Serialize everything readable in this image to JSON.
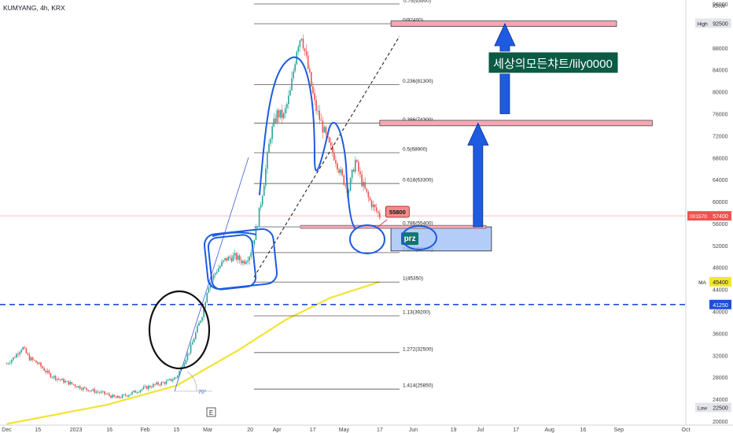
{
  "symbol_label": "KUMYANG, 4h, KRX",
  "currency": "KRW",
  "watermark": "세상의모든챠트/lily0000",
  "event_marker": "E",
  "angle_label": "70°",
  "chart_data": {
    "type": "candlestick",
    "y_axis": {
      "min": 20000,
      "max": 96000,
      "ticks": [
        96000,
        92500,
        88000,
        84000,
        80000,
        76000,
        72000,
        68000,
        64000,
        60000,
        56000,
        52000,
        48000,
        44000,
        40000,
        36000,
        32000,
        28000,
        24000,
        22500,
        20000
      ],
      "tick_labels": [
        "96000",
        "92500",
        "88000",
        "84000",
        "80000",
        "76000",
        "72000",
        "68000",
        "64000",
        "60000",
        "56000",
        "52000",
        "48000",
        "44000",
        "40000",
        "36000",
        "32000",
        "28000",
        "24000",
        "22500",
        "20000"
      ]
    },
    "x_axis": {
      "start": "2022-11-28",
      "end": "2023-10-01",
      "ticks": [
        {
          "date": "2022-12-01",
          "label": "Dec"
        },
        {
          "date": "2022-12-15",
          "label": "15"
        },
        {
          "date": "2023-01-01",
          "label": "2023"
        },
        {
          "date": "2023-01-16",
          "label": "16"
        },
        {
          "date": "2023-02-01",
          "label": "Feb"
        },
        {
          "date": "2023-02-15",
          "label": "15"
        },
        {
          "date": "2023-03-01",
          "label": "Mar"
        },
        {
          "date": "2023-03-20",
          "label": "20"
        },
        {
          "date": "2023-04-01",
          "label": "Apr"
        },
        {
          "date": "2023-04-17",
          "label": "17"
        },
        {
          "date": "2023-05-01",
          "label": "May"
        },
        {
          "date": "2023-05-17",
          "label": "17"
        },
        {
          "date": "2023-06-01",
          "label": "Jun"
        },
        {
          "date": "2023-06-19",
          "label": "19"
        },
        {
          "date": "2023-07-01",
          "label": "Jul"
        },
        {
          "date": "2023-07-17",
          "label": "17"
        },
        {
          "date": "2023-08-01",
          "label": "Aug"
        },
        {
          "date": "2023-08-16",
          "label": "16"
        },
        {
          "date": "2023-09-01",
          "label": "Sep"
        },
        {
          "date": "2023-10-01",
          "label": "Oct"
        }
      ]
    },
    "price_path": [
      [
        "2022-12-01",
        30500
      ],
      [
        "2022-12-04",
        31500
      ],
      [
        "2022-12-08",
        33500
      ],
      [
        "2022-12-11",
        31500
      ],
      [
        "2022-12-15",
        30500
      ],
      [
        "2022-12-20",
        28500
      ],
      [
        "2022-12-25",
        27500
      ],
      [
        "2022-12-30",
        26800
      ],
      [
        "2023-01-04",
        26000
      ],
      [
        "2023-01-09",
        25500
      ],
      [
        "2023-01-14",
        25000
      ],
      [
        "2023-01-19",
        24200
      ],
      [
        "2023-01-24",
        24800
      ],
      [
        "2023-01-30",
        25800
      ],
      [
        "2023-02-05",
        26600
      ],
      [
        "2023-02-11",
        27200
      ],
      [
        "2023-02-15",
        28000
      ],
      [
        "2023-02-18",
        30500
      ],
      [
        "2023-02-21",
        33000
      ],
      [
        "2023-02-24",
        36500
      ],
      [
        "2023-02-27",
        40000
      ],
      [
        "2023-03-01",
        44500
      ],
      [
        "2023-03-05",
        47500
      ],
      [
        "2023-03-09",
        49500
      ],
      [
        "2023-03-13",
        50000
      ],
      [
        "2023-03-17",
        49000
      ],
      [
        "2023-03-20",
        50500
      ],
      [
        "2023-03-23",
        55500
      ],
      [
        "2023-03-26",
        63000
      ],
      [
        "2023-03-29",
        72000
      ],
      [
        "2023-04-01",
        76000
      ],
      [
        "2023-04-04",
        75500
      ],
      [
        "2023-04-07",
        80000
      ],
      [
        "2023-04-10",
        88500
      ],
      [
        "2023-04-12",
        90500
      ],
      [
        "2023-04-15",
        84000
      ],
      [
        "2023-04-18",
        77500
      ],
      [
        "2023-04-21",
        74000
      ],
      [
        "2023-04-24",
        70500
      ],
      [
        "2023-04-27",
        68000
      ],
      [
        "2023-04-30",
        64500
      ],
      [
        "2023-05-03",
        62000
      ],
      [
        "2023-05-06",
        67500
      ],
      [
        "2023-05-09",
        63500
      ],
      [
        "2023-05-12",
        60500
      ],
      [
        "2023-05-15",
        58500
      ],
      [
        "2023-05-17",
        57400
      ]
    ],
    "fib_levels": [
      {
        "ratio": "0",
        "value": 92400,
        "label": "0(92400)"
      },
      {
        "ratio": "0.236",
        "value": 81300,
        "label": "0.236(81300)"
      },
      {
        "ratio": "0.386",
        "value": 74300,
        "label": "0.386(74300)"
      },
      {
        "ratio": "0.5",
        "value": 68900,
        "label": "0.5(68900)"
      },
      {
        "ratio": "0.618",
        "value": 63300,
        "label": "0.618(63300)"
      },
      {
        "ratio": "0.786",
        "value": 55400,
        "label": "0.786(55400)"
      },
      {
        "ratio": "0.886",
        "value": 50700,
        "label": "0.886(50700)"
      },
      {
        "ratio": "1",
        "value": 45350,
        "label": "1(45350)"
      },
      {
        "ratio": "1.13",
        "value": 39200,
        "label": "1.13(39200)"
      },
      {
        "ratio": "1.272",
        "value": 32500,
        "label": "1.272(32500)"
      },
      {
        "ratio": "1.414",
        "value": 25850,
        "label": "1.414(25850)"
      }
    ],
    "fib_top_label": "0.75(93900)",
    "moving_average": {
      "name": "MA",
      "value": 45400,
      "points": [
        [
          "2022-12-01",
          19500
        ],
        [
          "2023-01-15",
          23000
        ],
        [
          "2023-02-15",
          26500
        ],
        [
          "2023-03-15",
          33000
        ],
        [
          "2023-04-05",
          38500
        ],
        [
          "2023-04-25",
          42500
        ],
        [
          "2023-05-17",
          45400
        ]
      ],
      "color": "#f2e431"
    },
    "support_line": {
      "value": 41250,
      "label": "41250",
      "color": "#1e4fd8"
    },
    "high": {
      "value": 92500,
      "label": "92500",
      "tag": "High"
    },
    "low": {
      "value": 22500,
      "label": "22500",
      "tag": "Low"
    },
    "last_price": {
      "value": 57400,
      "label": "57400",
      "countdown": "001570"
    },
    "price_callout": {
      "value": 55800,
      "label": "55800",
      "date": "2023-05-14"
    },
    "prz_zone": {
      "label": "prz",
      "from_date": "2023-05-22",
      "to_date": "2023-07-06",
      "low": 51000,
      "high": 55400
    },
    "target_zones": [
      {
        "value": 92400,
        "from_date": "2023-05-22",
        "to_date": "2023-08-31"
      },
      {
        "value": 74300,
        "from_date": "2023-05-17",
        "to_date": "2023-09-16"
      }
    ],
    "arrows": [
      {
        "date": "2023-06-30",
        "from": 55400,
        "to": 74300
      },
      {
        "date": "2023-07-12",
        "from": 76000,
        "to": 92400
      }
    ],
    "colors": {
      "up": "#26a69a",
      "down": "#ef5350",
      "annotation": "#1e5be0",
      "fib_line": "#555555",
      "target": "#f4a6b4"
    }
  }
}
